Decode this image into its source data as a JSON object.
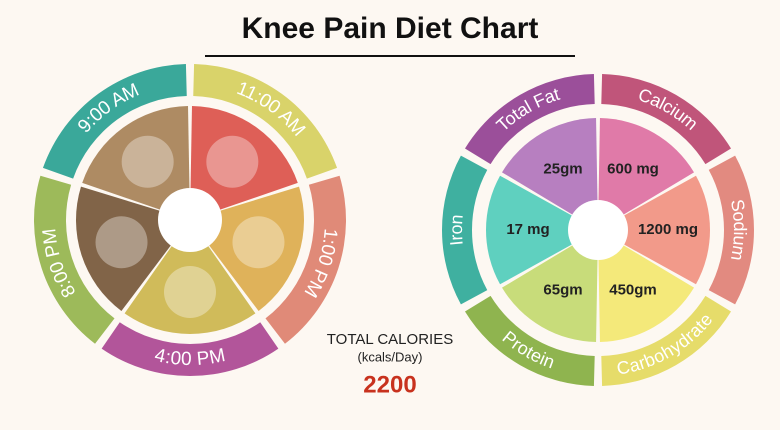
{
  "header": {
    "title": "Knee Pain Diet Chart"
  },
  "meal_schedule": {
    "times": [
      "9:00 AM",
      "11:00 AM",
      "1:00 PM",
      "4:00 PM",
      "8:00 PM"
    ]
  },
  "total_calories": {
    "label": "TOTAL CALORIES",
    "unit": "(kcals/Day)",
    "value": 2200
  },
  "nutrients": [
    {
      "name": "Total Fat",
      "amount": "25gm"
    },
    {
      "name": "Calcium",
      "amount": "600 mg"
    },
    {
      "name": "Sodium",
      "amount": "1200 mg"
    },
    {
      "name": "Carbohydrate",
      "amount": "450gm"
    },
    {
      "name": "Protein",
      "amount": "65gm"
    },
    {
      "name": "Iron",
      "amount": "17 mg"
    }
  ]
}
